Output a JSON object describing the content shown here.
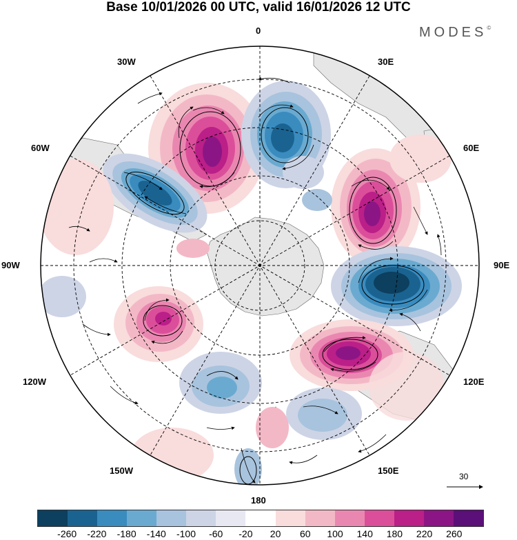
{
  "header": {
    "title": "Base 10/01/2026 00 UTC, valid 16/01/2026 12 UTC",
    "brand": "MODES",
    "brand_mark": "©"
  },
  "map": {
    "projection": "south-polar-stereographic",
    "longitude_labels": [
      "0",
      "30E",
      "60E",
      "90E",
      "120E",
      "150E",
      "180",
      "150W",
      "120W",
      "90W",
      "60W",
      "30W"
    ],
    "anomalies": [
      {
        "name": "positive-anomaly-south-atlantic-west",
        "sign": "positive",
        "peak": 260
      },
      {
        "name": "negative-anomaly-south-atlantic-central",
        "sign": "negative",
        "peak": -240
      },
      {
        "name": "negative-anomaly-south-america",
        "sign": "negative",
        "peak": -260
      },
      {
        "name": "positive-anomaly-indian-ocean-west",
        "sign": "positive",
        "peak": 260
      },
      {
        "name": "negative-anomaly-indian-ocean-east",
        "sign": "negative",
        "peak": -260
      },
      {
        "name": "positive-anomaly-south-of-australia",
        "sign": "positive",
        "peak": 260
      },
      {
        "name": "positive-anomaly-south-pacific-east",
        "sign": "positive",
        "peak": 220
      },
      {
        "name": "negative-anomaly-south-pacific-central",
        "sign": "negative",
        "peak": -140
      },
      {
        "name": "negative-anomaly-tasman-sea",
        "sign": "negative",
        "peak": -100
      }
    ]
  },
  "reference_vector": {
    "value": "30"
  },
  "colorbar": {
    "colors": [
      "#0d3f5e",
      "#1a6391",
      "#3a8cbf",
      "#6aaad0",
      "#a8c3dd",
      "#cdd4e6",
      "#e8e8f2",
      "#ffffff",
      "#f9dcdc",
      "#f3b8c6",
      "#ea87b1",
      "#db4f9a",
      "#bb1f88",
      "#8c1585",
      "#5b0f78"
    ],
    "tick_labels": [
      "-260",
      "-220",
      "-180",
      "-140",
      "-100",
      "-60",
      "-20",
      "20",
      "60",
      "100",
      "140",
      "180",
      "220",
      "260"
    ]
  }
}
